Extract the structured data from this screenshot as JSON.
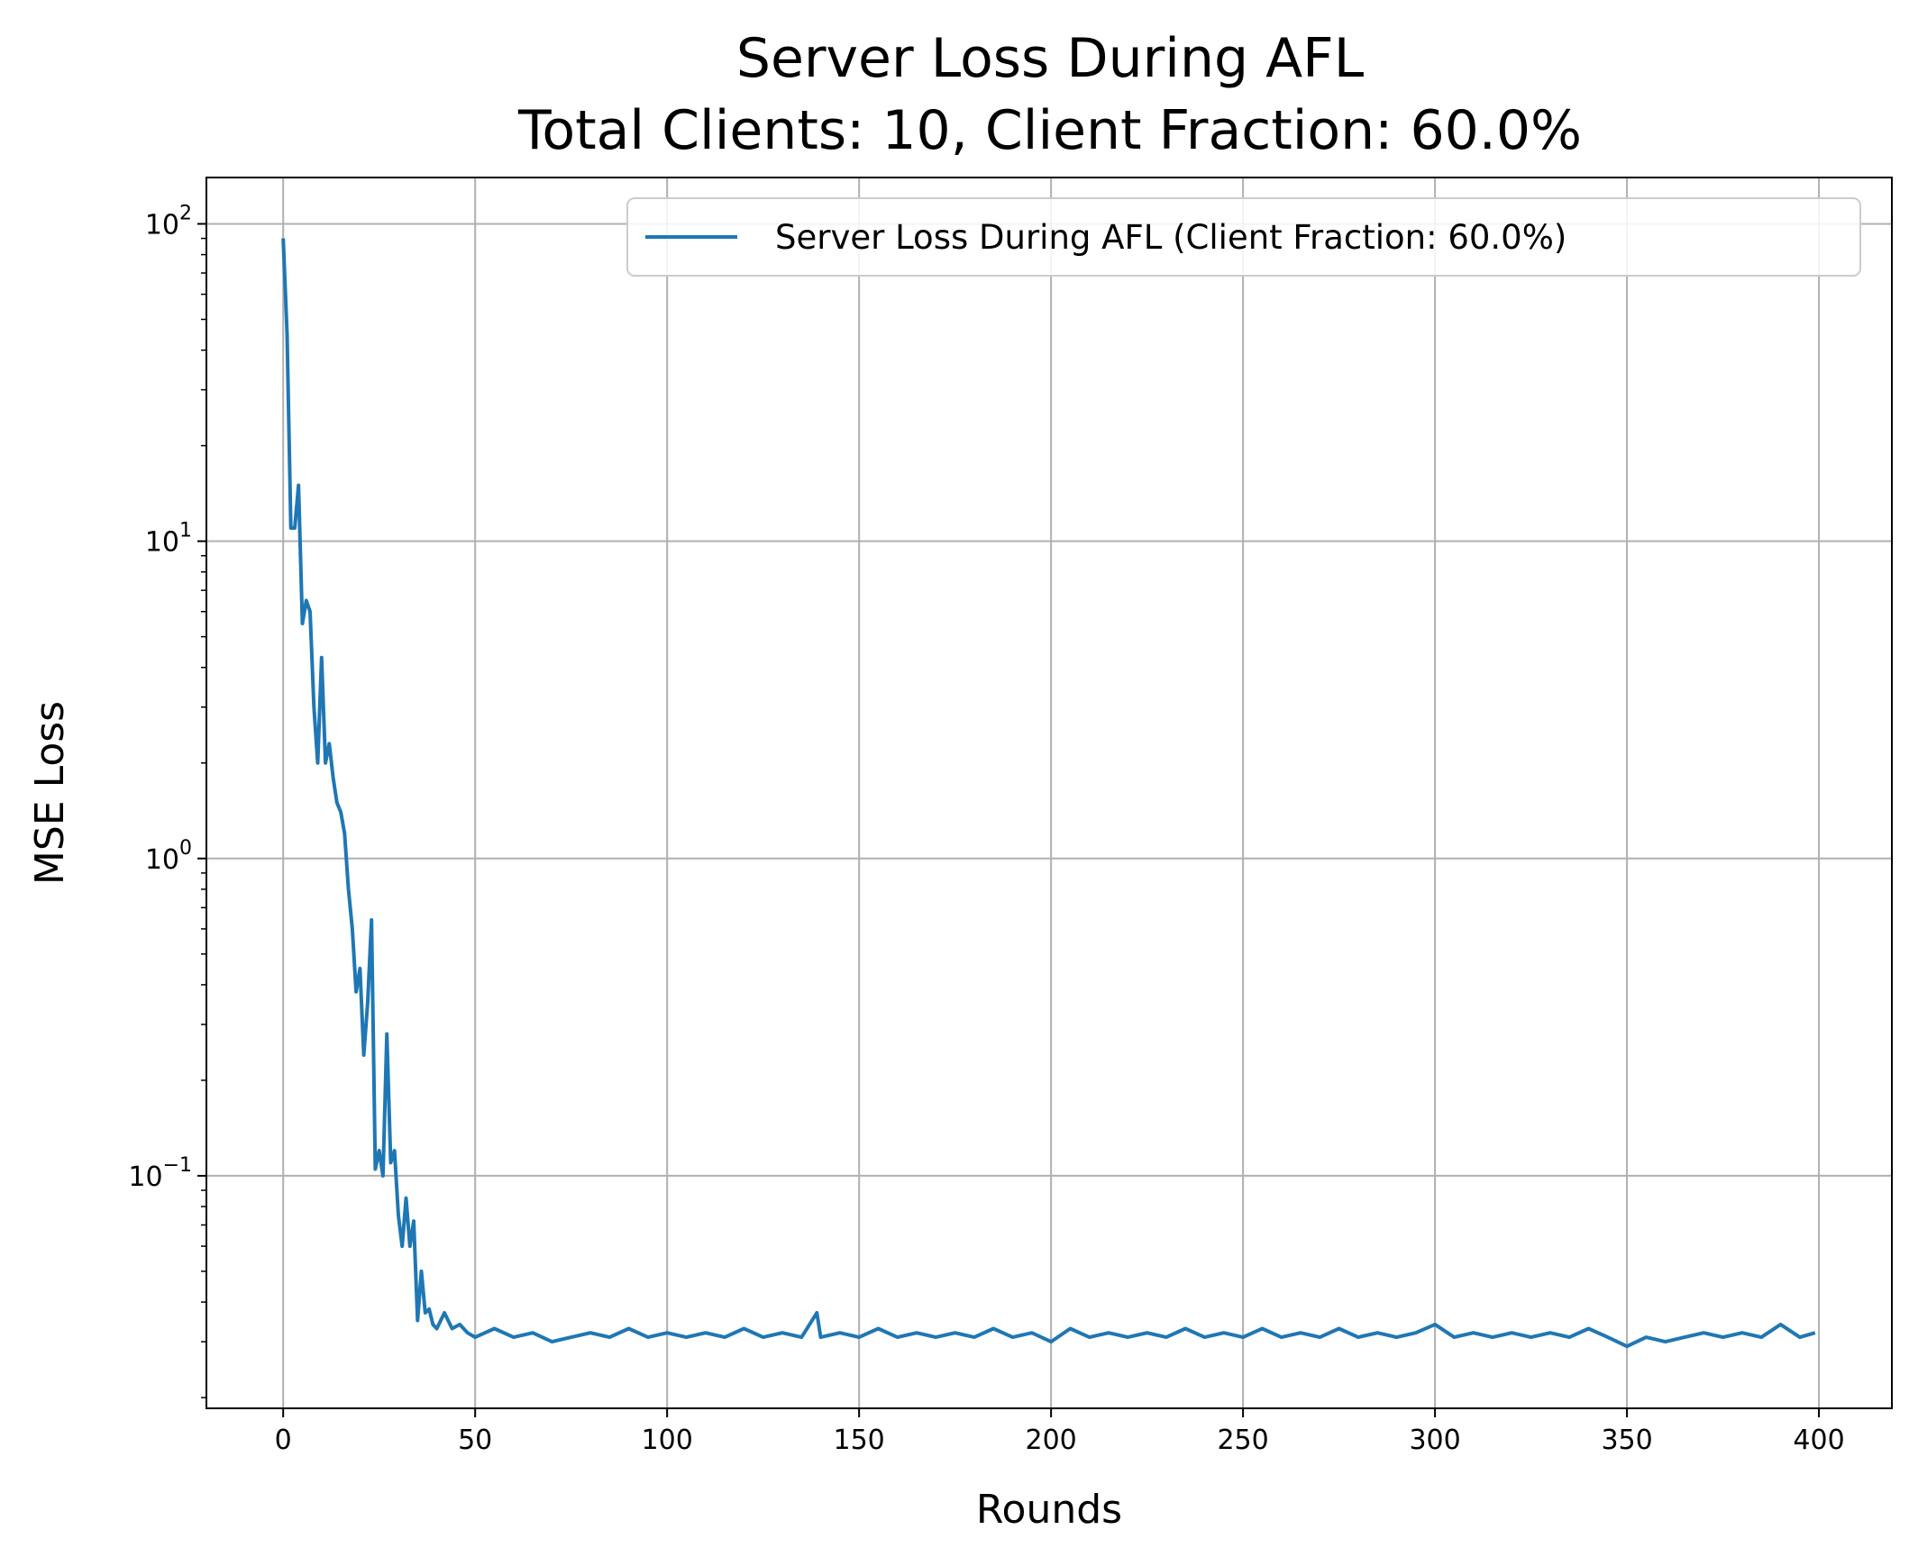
{
  "chart_data": {
    "type": "line",
    "title_line1": "Server Loss During AFL",
    "title_line2": "Total Clients: 10, Client Fraction: 60.0%",
    "xlabel": "Rounds",
    "ylabel": "MSE Loss",
    "xlim": [
      -20,
      419
    ],
    "ylim": [
      0.0185,
      140
    ],
    "yscale": "log",
    "grid": true,
    "legend_placement": "top-right",
    "line_color": "#1f77b4",
    "x_ticks": [
      0,
      50,
      100,
      150,
      200,
      250,
      300,
      350,
      400
    ],
    "y_ticks": [
      {
        "value": 100,
        "base": "10",
        "exp": "2"
      },
      {
        "value": 10,
        "base": "10",
        "exp": "1"
      },
      {
        "value": 1,
        "base": "10",
        "exp": "0"
      },
      {
        "value": 0.1,
        "base": "10",
        "exp": "−1"
      }
    ],
    "series": [
      {
        "name": "Server Loss During AFL (Client Fraction: 60.0%)",
        "x": [
          0,
          1,
          2,
          3,
          4,
          5,
          6,
          7,
          8,
          9,
          10,
          11,
          12,
          13,
          14,
          15,
          16,
          17,
          18,
          19,
          20,
          21,
          22,
          23,
          24,
          25,
          26,
          27,
          28,
          29,
          30,
          31,
          32,
          33,
          34,
          35,
          36,
          37,
          38,
          39,
          40,
          42,
          44,
          46,
          48,
          50,
          55,
          60,
          65,
          70,
          75,
          80,
          85,
          90,
          95,
          100,
          105,
          110,
          115,
          120,
          125,
          130,
          135,
          139,
          140,
          145,
          150,
          155,
          160,
          165,
          170,
          175,
          180,
          185,
          190,
          195,
          200,
          205,
          210,
          215,
          220,
          225,
          230,
          235,
          240,
          245,
          250,
          255,
          260,
          265,
          270,
          275,
          280,
          285,
          290,
          295,
          300,
          305,
          310,
          315,
          320,
          325,
          330,
          335,
          340,
          345,
          350,
          355,
          360,
          365,
          370,
          375,
          380,
          385,
          390,
          395,
          399
        ],
        "values": [
          90,
          45,
          11,
          11,
          15,
          5.5,
          6.5,
          6,
          3,
          2,
          4.3,
          2,
          2.3,
          1.8,
          1.5,
          1.4,
          1.2,
          0.8,
          0.6,
          0.38,
          0.45,
          0.24,
          0.35,
          0.64,
          0.105,
          0.12,
          0.1,
          0.28,
          0.11,
          0.12,
          0.075,
          0.06,
          0.085,
          0.06,
          0.072,
          0.035,
          0.05,
          0.037,
          0.038,
          0.034,
          0.033,
          0.037,
          0.033,
          0.034,
          0.032,
          0.031,
          0.033,
          0.031,
          0.032,
          0.03,
          0.031,
          0.032,
          0.031,
          0.033,
          0.031,
          0.032,
          0.031,
          0.032,
          0.031,
          0.033,
          0.031,
          0.032,
          0.031,
          0.037,
          0.031,
          0.032,
          0.031,
          0.033,
          0.031,
          0.032,
          0.031,
          0.032,
          0.031,
          0.033,
          0.031,
          0.032,
          0.03,
          0.033,
          0.031,
          0.032,
          0.031,
          0.032,
          0.031,
          0.033,
          0.031,
          0.032,
          0.031,
          0.033,
          0.031,
          0.032,
          0.031,
          0.033,
          0.031,
          0.032,
          0.031,
          0.032,
          0.034,
          0.031,
          0.032,
          0.031,
          0.032,
          0.031,
          0.032,
          0.031,
          0.033,
          0.031,
          0.029,
          0.031,
          0.03,
          0.031,
          0.032,
          0.031,
          0.032,
          0.031,
          0.034,
          0.031,
          0.032
        ]
      }
    ]
  }
}
